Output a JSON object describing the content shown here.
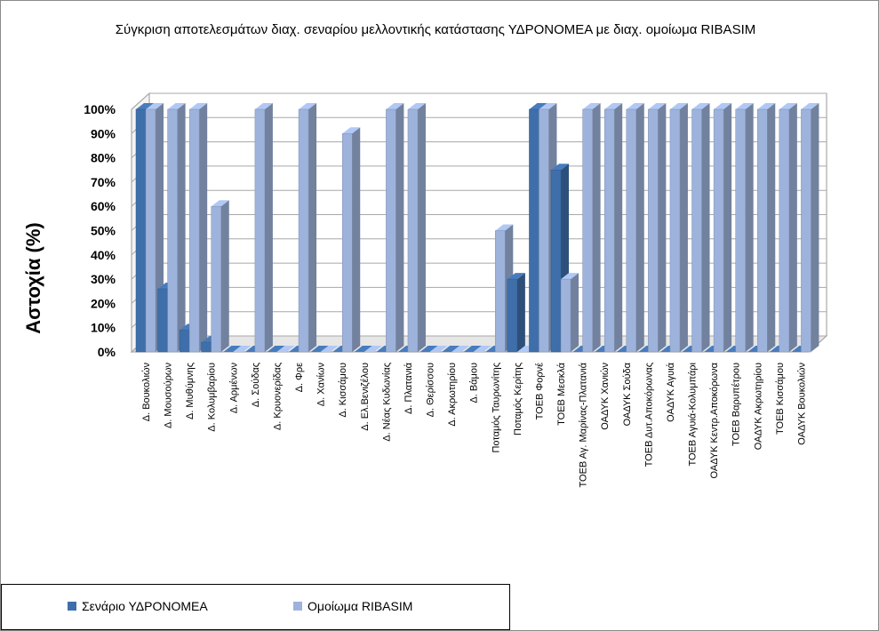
{
  "chart_data": {
    "type": "bar",
    "title": "Σύγκριση αποτελεσμάτων διαχ. σεναρίου μελλοντικής κατάστασης ΥΔΡΟΝΟΜΕΑ με διαχ. ομοίωμα RIBASIM",
    "ylabel": "Αστοχία (%)",
    "xlabel": "",
    "ylim": [
      0,
      100
    ],
    "yticks": [
      "0%",
      "10%",
      "20%",
      "30%",
      "40%",
      "50%",
      "60%",
      "70%",
      "80%",
      "90%",
      "100%"
    ],
    "grid": true,
    "legend_position": "bottom-left",
    "categories": [
      "Δ. Βουκολιών",
      "Δ. Μουσούρων",
      "Δ. Μυθύμνης",
      "Δ. Κολυμβαρίου",
      "Δ. Αρμένων",
      "Δ. Σούδας",
      "Δ. Κρυονερίδας",
      "Δ. Φρε",
      "Δ. Χανίων",
      "Δ. Κισσάμου",
      "Δ. Ελ.Βενιζέλου",
      "Δ. Νέας Κυδωνίας",
      "Δ. Πλατανιά",
      "Δ. Θερίσσου",
      "Δ. Ακρωτηρίου",
      "Δ. Βάμου",
      "Ποταμός Ταυρωνίτης",
      "Ποταμός Κερίτης",
      "ΤΟΕΒ Φορνέ",
      "ΤΟΕΒ Μεσκλά",
      "ΤΟΕΒ Αγ. Μαρίνας-Πλατανιά",
      "ΟΑΔΥΚ Χανιών",
      "ΟΑΔΥΚ Σούδα",
      "ΤΟΕΒ Δυτ.Αποκόρωνας",
      "ΟΑΔΥΚ Αγυιά",
      "ΤΟΕΒ Αγυιά-Κολυμπάρι",
      "ΟΑΔΥΚ Κεντρ.Αποκόρωνα",
      "ΤΟΕΒ Βαρυπέτρου",
      "ΟΑΔΥΚ Ακρωτηρίου",
      "ΤΟΕΒ Κισσάμου",
      "ΟΑΔΥΚ Βουκολιών"
    ],
    "series": [
      {
        "name": "Σενάριο ΥΔΡΟΝΟΜΕΑ",
        "color": "#3f6faa",
        "values": [
          100,
          26,
          9,
          4,
          0,
          0,
          0,
          0,
          0,
          0,
          0,
          0,
          0,
          0,
          0,
          0,
          0,
          30,
          100,
          75,
          0,
          0,
          0,
          0,
          0,
          0,
          0,
          0,
          0,
          0,
          0
        ]
      },
      {
        "name": "Ομοίωμα RIBASIM",
        "color": "#9db3dc",
        "values": [
          100,
          100,
          100,
          60,
          0,
          100,
          0,
          100,
          0,
          90,
          0,
          100,
          100,
          0,
          0,
          0,
          50,
          0,
          100,
          30,
          100,
          100,
          100,
          100,
          100,
          100,
          100,
          100,
          100,
          100,
          100
        ]
      }
    ]
  }
}
